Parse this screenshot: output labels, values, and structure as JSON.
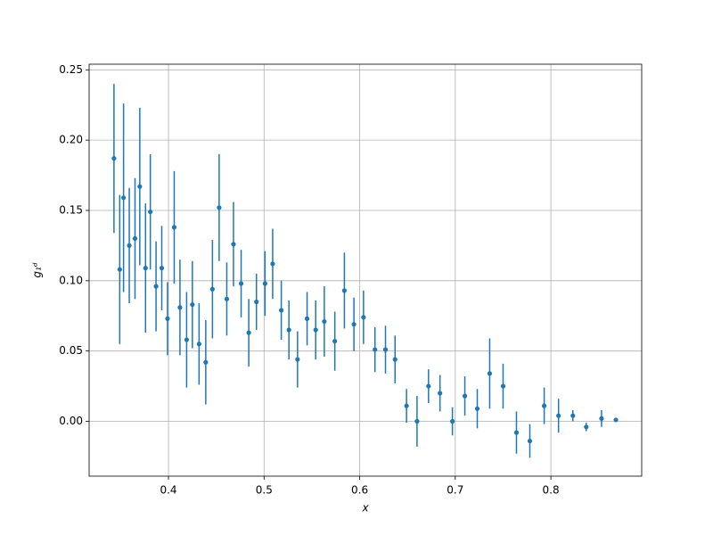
{
  "chart_data": {
    "type": "errorbar",
    "xlabel": "x",
    "ylabel": "g₁ᵈ",
    "x": [
      0.343,
      0.349,
      0.353,
      0.359,
      0.365,
      0.37,
      0.376,
      0.381,
      0.387,
      0.393,
      0.399,
      0.406,
      0.412,
      0.419,
      0.425,
      0.432,
      0.439,
      0.446,
      0.453,
      0.461,
      0.468,
      0.476,
      0.484,
      0.492,
      0.501,
      0.509,
      0.518,
      0.526,
      0.535,
      0.545,
      0.554,
      0.563,
      0.574,
      0.584,
      0.594,
      0.604,
      0.616,
      0.627,
      0.637,
      0.649,
      0.66,
      0.672,
      0.684,
      0.697,
      0.71,
      0.723,
      0.736,
      0.75,
      0.764,
      0.778,
      0.793,
      0.808,
      0.823,
      0.837,
      0.853,
      0.868
    ],
    "values": [
      0.187,
      0.108,
      0.159,
      0.125,
      0.13,
      0.167,
      0.109,
      0.149,
      0.096,
      0.109,
      0.073,
      0.138,
      0.081,
      0.058,
      0.083,
      0.055,
      0.042,
      0.094,
      0.152,
      0.087,
      0.126,
      0.098,
      0.063,
      0.085,
      0.098,
      0.112,
      0.079,
      0.065,
      0.044,
      0.073,
      0.065,
      0.071,
      0.057,
      0.093,
      0.069,
      0.074,
      0.051,
      0.051,
      0.044,
      0.011,
      0.0,
      0.025,
      0.02,
      0.0,
      0.018,
      0.009,
      0.034,
      0.025,
      -0.008,
      -0.014,
      0.011,
      0.004,
      0.004,
      -0.004,
      0.002,
      0.001
    ],
    "errors": [
      0.053,
      0.053,
      0.067,
      0.041,
      0.043,
      0.056,
      0.046,
      0.041,
      0.032,
      0.03,
      0.026,
      0.04,
      0.034,
      0.034,
      0.031,
      0.029,
      0.03,
      0.035,
      0.038,
      0.026,
      0.03,
      0.024,
      0.024,
      0.02,
      0.023,
      0.025,
      0.021,
      0.021,
      0.02,
      0.019,
      0.021,
      0.025,
      0.021,
      0.027,
      0.019,
      0.019,
      0.016,
      0.017,
      0.017,
      0.012,
      0.018,
      0.012,
      0.013,
      0.01,
      0.014,
      0.014,
      0.025,
      0.016,
      0.015,
      0.012,
      0.013,
      0.012,
      0.004,
      0.003,
      0.006,
      0.001
    ],
    "color": "#1f77b4",
    "xlim": [
      0.317,
      0.895
    ],
    "ylim": [
      -0.039,
      0.254
    ],
    "xticks": [
      0.4,
      0.5,
      0.6,
      0.7,
      0.8
    ],
    "yticks": [
      {
        "value": 0,
        "label": "0.00"
      },
      0.05,
      {
        "value": 0.1,
        "label": "0.10"
      },
      0.15,
      {
        "value": 0.2,
        "label": "0.20"
      },
      0.25
    ],
    "grid": true
  }
}
